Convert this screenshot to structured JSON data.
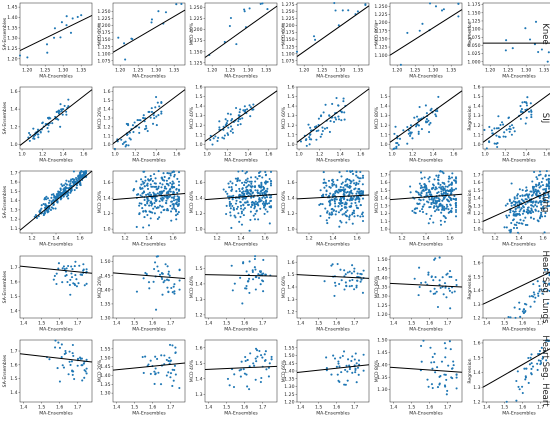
{
  "figure": {
    "rows": [
      {
        "label": "Knee"
      },
      {
        "label": "SIJ"
      },
      {
        "label": "Lung"
      },
      {
        "label": "Heart Seg. Lungs"
      },
      {
        "label": "Heart Seg. Heart"
      }
    ],
    "columns": [
      {
        "ylabel": "SA-Ensembles"
      },
      {
        "ylabel": "MCD 20%"
      },
      {
        "ylabel": "MCD 40%"
      },
      {
        "ylabel": "MCD 60%"
      },
      {
        "ylabel": "MCD 80%"
      },
      {
        "ylabel": "Regression"
      }
    ],
    "xlabel": "MA-Ensembles",
    "point_color": "#1f77b4",
    "line_color": "#000000"
  },
  "chart_data": {
    "type": "scatter",
    "note_fit": "each panel shows points with a black linear regression line",
    "rows": [
      {
        "name": "Knee",
        "xlim": [
          1.18,
          1.38
        ],
        "xticks": [
          "1.20",
          "1.25",
          "1.30",
          "1.35"
        ],
        "panels": [
          {
            "ylabel": "SA-Ensembles",
            "ylim": [
              1.17,
              1.47
            ],
            "yticks": [
              "1.20",
              "1.25",
              "1.30",
              "1.35",
              "1.40",
              "1.45"
            ],
            "n": 14,
            "xr": [
              1.2,
              1.35
            ],
            "slope": 1.05,
            "intercept": -0.01,
            "noise": 0.035,
            "seed": 11,
            "fit": [
              1.24,
              1.41
            ]
          },
          {
            "ylabel": "MCD 20%",
            "ylim": [
              1.06,
              1.28
            ],
            "yticks": [
              "1.075",
              "1.100",
              "1.125",
              "1.150",
              "1.175",
              "1.200",
              "1.225",
              "1.250"
            ],
            "n": 12,
            "xr": [
              1.2,
              1.37
            ],
            "slope": 1.0,
            "intercept": -0.08,
            "noise": 0.03,
            "seed": 12,
            "fit": [
              1.105,
              1.255
            ]
          },
          {
            "ylabel": "MCD 40%",
            "ylim": [
              1.12,
              1.26
            ],
            "yticks": [
              "1.125",
              "1.150",
              "1.175",
              "1.200",
              "1.225",
              "1.250"
            ],
            "n": 12,
            "xr": [
              1.2,
              1.36
            ],
            "slope": 0.75,
            "intercept": 0.24,
            "noise": 0.025,
            "seed": 13,
            "fit": [
              1.137,
              1.253
            ]
          },
          {
            "ylabel": "MCD 60%",
            "ylim": [
              1.06,
              1.28
            ],
            "yticks": [
              "1.075",
              "1.100",
              "1.125",
              "1.150",
              "1.175",
              "1.200",
              "1.225",
              "1.250",
              "1.275"
            ],
            "n": 12,
            "xr": [
              1.2,
              1.37
            ],
            "slope": 1.0,
            "intercept": -0.07,
            "noise": 0.03,
            "seed": 14,
            "fit": [
              1.09,
              1.27
            ]
          },
          {
            "ylabel": "MCD 80%",
            "ylim": [
              1.07,
              1.26
            ],
            "yticks": [
              "1.100",
              "1.125",
              "1.150",
              "1.175",
              "1.200",
              "1.225",
              "1.250"
            ],
            "n": 12,
            "xr": [
              1.2,
              1.37
            ],
            "slope": 0.95,
            "intercept": -0.03,
            "noise": 0.03,
            "seed": 15,
            "fit": [
              1.1,
              1.24
            ]
          },
          {
            "ylabel": "Regression",
            "ylim": [
              0.99,
              1.18
            ],
            "yticks": [
              "1.000",
              "1.025",
              "1.050",
              "1.075",
              "1.100",
              "1.125",
              "1.150",
              "1.175"
            ],
            "n": 12,
            "xr": [
              1.2,
              1.37
            ],
            "slope": 0.0,
            "intercept": 1.057,
            "noise": 0.035,
            "seed": 16,
            "fit": [
              1.057,
              1.057
            ]
          }
        ]
      },
      {
        "name": "SIJ",
        "xlim": [
          0.98,
          1.68
        ],
        "xticks": [
          "1.0",
          "1.2",
          "1.4",
          "1.6"
        ],
        "panels": [
          {
            "ylabel": "SA-Ensembles",
            "ylim": [
              0.95,
              1.65
            ],
            "yticks": [
              "1.0",
              "1.2",
              "1.4",
              "1.6"
            ],
            "n": 60,
            "xr": [
              1.0,
              1.45
            ],
            "slope": 1.0,
            "intercept": 0.0,
            "noise": 0.06,
            "seed": 21,
            "fit": [
              0.99,
              1.62
            ]
          },
          {
            "ylabel": "MCD 20%",
            "ylim": [
              0.95,
              1.65
            ],
            "yticks": [
              "1.0",
              "1.1",
              "1.2",
              "1.3",
              "1.4",
              "1.5",
              "1.6"
            ],
            "n": 60,
            "xr": [
              1.0,
              1.45
            ],
            "slope": 0.9,
            "intercept": 0.1,
            "noise": 0.07,
            "seed": 22,
            "fit": [
              1.01,
              1.62
            ]
          },
          {
            "ylabel": "MCD 40%",
            "ylim": [
              0.95,
              1.6
            ],
            "yticks": [
              "1.0",
              "1.1",
              "1.2",
              "1.3",
              "1.4",
              "1.5",
              "1.6"
            ],
            "n": 60,
            "xr": [
              1.0,
              1.45
            ],
            "slope": 0.85,
            "intercept": 0.16,
            "noise": 0.07,
            "seed": 23,
            "fit": [
              1.03,
              1.56
            ]
          },
          {
            "ylabel": "MCD 60%",
            "ylim": [
              0.95,
              1.6
            ],
            "yticks": [
              "1.0",
              "1.1",
              "1.2",
              "1.3",
              "1.4",
              "1.5",
              "1.6"
            ],
            "n": 60,
            "xr": [
              1.0,
              1.45
            ],
            "slope": 0.85,
            "intercept": 0.15,
            "noise": 0.07,
            "seed": 24,
            "fit": [
              1.02,
              1.58
            ]
          },
          {
            "ylabel": "MCD 80%",
            "ylim": [
              0.95,
              1.6
            ],
            "yticks": [
              "1.0",
              "1.1",
              "1.2",
              "1.3",
              "1.4",
              "1.5"
            ],
            "n": 60,
            "xr": [
              1.0,
              1.45
            ],
            "slope": 0.85,
            "intercept": 0.15,
            "noise": 0.07,
            "seed": 25,
            "fit": [
              1.02,
              1.56
            ]
          },
          {
            "ylabel": "Regression",
            "ylim": [
              0.95,
              1.6
            ],
            "yticks": [
              "1.0",
              "1.1",
              "1.2",
              "1.3",
              "1.4",
              "1.5",
              "1.6"
            ],
            "n": 60,
            "xr": [
              1.0,
              1.45
            ],
            "slope": 0.85,
            "intercept": 0.15,
            "noise": 0.08,
            "seed": 26,
            "fit": [
              1.02,
              1.57
            ]
          }
        ]
      },
      {
        "name": "Lung",
        "xlim": [
          1.1,
          1.7
        ],
        "xticks": [
          "1.2",
          "1.4",
          "1.6"
        ],
        "panels": [
          {
            "ylabel": "SA-Ensembles",
            "ylim": [
              1.05,
              1.72
            ],
            "yticks": [
              "1.1",
              "1.2",
              "1.3",
              "1.4",
              "1.5",
              "1.6",
              "1.7"
            ],
            "n": 260,
            "xr": [
              1.25,
              1.65
            ],
            "slope": 1.1,
            "intercept": -0.12,
            "noise": 0.04,
            "seed": 31,
            "fit": [
              1.08,
              1.72
            ]
          },
          {
            "ylabel": "MCD 20%",
            "ylim": [
              0.95,
              1.75
            ],
            "yticks": [
              "1.0",
              "1.2",
              "1.4",
              "1.6"
            ],
            "n": 260,
            "xr": [
              1.3,
              1.65
            ],
            "slope": 0.15,
            "intercept": 1.2,
            "noise": 0.15,
            "seed": 32,
            "fit": [
              1.38,
              1.46
            ]
          },
          {
            "ylabel": "MCD 40%",
            "ylim": [
              0.95,
              1.75
            ],
            "yticks": [
              "1.0",
              "1.2",
              "1.4",
              "1.6"
            ],
            "n": 260,
            "xr": [
              1.3,
              1.65
            ],
            "slope": 0.15,
            "intercept": 1.2,
            "noise": 0.15,
            "seed": 33,
            "fit": [
              1.38,
              1.45
            ]
          },
          {
            "ylabel": "MCD 60%",
            "ylim": [
              0.95,
              1.75
            ],
            "yticks": [
              "1.0",
              "1.2",
              "1.4",
              "1.6"
            ],
            "n": 260,
            "xr": [
              1.3,
              1.65
            ],
            "slope": 0.1,
            "intercept": 1.27,
            "noise": 0.15,
            "seed": 34,
            "fit": [
              1.39,
              1.44
            ]
          },
          {
            "ylabel": "MCD 80%",
            "ylim": [
              0.95,
              1.75
            ],
            "yticks": [
              "1.0",
              "1.1",
              "1.2",
              "1.3",
              "1.4",
              "1.5",
              "1.6",
              "1.7"
            ],
            "n": 260,
            "xr": [
              1.3,
              1.65
            ],
            "slope": 0.12,
            "intercept": 1.24,
            "noise": 0.15,
            "seed": 35,
            "fit": [
              1.38,
              1.45
            ]
          },
          {
            "ylabel": "Regression",
            "ylim": [
              0.95,
              1.75
            ],
            "yticks": [
              "1.0",
              "1.1",
              "1.2",
              "1.3",
              "1.4",
              "1.5",
              "1.6",
              "1.7"
            ],
            "n": 260,
            "xr": [
              1.3,
              1.65
            ],
            "slope": 0.9,
            "intercept": 0.0,
            "noise": 0.16,
            "seed": 36,
            "fit": [
              1.1,
              1.52
            ]
          }
        ]
      },
      {
        "name": "Heart Seg. Lungs",
        "xlim": [
          1.38,
          1.78
        ],
        "xticks": [
          "1.4",
          "1.5",
          "1.6",
          "1.7"
        ],
        "panels": [
          {
            "ylabel": "SA-Ensembles",
            "ylim": [
              1.35,
              1.78
            ],
            "yticks": [
              "1.4",
              "1.5",
              "1.6",
              "1.7"
            ],
            "n": 45,
            "xr": [
              1.55,
              1.75
            ],
            "slope": -0.2,
            "intercept": 1.99,
            "noise": 0.06,
            "seed": 41,
            "fit": [
              1.71,
              1.66
            ]
          },
          {
            "ylabel": "MCD 20%",
            "ylim": [
              1.3,
              1.52
            ],
            "yticks": [
              "1.30",
              "1.35",
              "1.40",
              "1.45",
              "1.50"
            ],
            "n": 45,
            "xr": [
              1.55,
              1.75
            ],
            "slope": -0.1,
            "intercept": 1.6,
            "noise": 0.04,
            "seed": 42,
            "fit": [
              1.46,
              1.44
            ]
          },
          {
            "ylabel": "MCD 40%",
            "ylim": [
              1.18,
              1.58
            ],
            "yticks": [
              "1.2",
              "1.3",
              "1.4",
              "1.5"
            ],
            "n": 45,
            "xr": [
              1.55,
              1.75
            ],
            "slope": -0.05,
            "intercept": 1.53,
            "noise": 0.06,
            "seed": 43,
            "fit": [
              1.46,
              1.45
            ]
          },
          {
            "ylabel": "MCD 60%",
            "ylim": [
              1.15,
              1.65
            ],
            "yticks": [
              "1.2",
              "1.3",
              "1.4",
              "1.5",
              "1.6"
            ],
            "n": 45,
            "xr": [
              1.55,
              1.75
            ],
            "slope": -0.1,
            "intercept": 1.64,
            "noise": 0.07,
            "seed": 44,
            "fit": [
              1.5,
              1.47
            ]
          },
          {
            "ylabel": "MCD 80%",
            "ylim": [
              1.18,
              1.52
            ],
            "yticks": [
              "1.20",
              "1.25",
              "1.30",
              "1.35",
              "1.40",
              "1.45",
              "1.50"
            ],
            "n": 45,
            "xr": [
              1.55,
              1.75
            ],
            "slope": -0.05,
            "intercept": 1.44,
            "noise": 0.06,
            "seed": 45,
            "fit": [
              1.37,
              1.35
            ]
          },
          {
            "ylabel": "Regression",
            "ylim": [
              1.2,
              1.65
            ],
            "yticks": [
              "1.2",
              "1.3",
              "1.4",
              "1.5",
              "1.6"
            ],
            "n": 45,
            "xr": [
              1.55,
              1.75
            ],
            "slope": 1.6,
            "intercept": -1.3,
            "noise": 0.06,
            "seed": 46,
            "fit": [
              1.3,
              1.55
            ]
          }
        ]
      },
      {
        "name": "Heart Seg. Heart",
        "xlim": [
          1.38,
          1.78
        ],
        "xticks": [
          "1.4",
          "1.5",
          "1.6",
          "1.7"
        ],
        "panels": [
          {
            "ylabel": "SA-Ensembles",
            "ylim": [
              1.33,
              1.78
            ],
            "yticks": [
              "1.4",
              "1.5",
              "1.6",
              "1.7"
            ],
            "n": 45,
            "xr": [
              1.55,
              1.75
            ],
            "slope": -0.2,
            "intercept": 1.96,
            "noise": 0.07,
            "seed": 51,
            "fit": [
              1.68,
              1.62
            ]
          },
          {
            "ylabel": "MCD 20%",
            "ylim": [
              1.25,
              1.6
            ],
            "yticks": [
              "1.30",
              "1.35",
              "1.40",
              "1.45",
              "1.50",
              "1.55"
            ],
            "n": 45,
            "xr": [
              1.55,
              1.75
            ],
            "slope": 0.1,
            "intercept": 1.29,
            "noise": 0.06,
            "seed": 52,
            "fit": [
              1.43,
              1.47
            ]
          },
          {
            "ylabel": "MCD 40%",
            "ylim": [
              1.25,
              1.65
            ],
            "yticks": [
              "1.3",
              "1.4",
              "1.5",
              "1.6"
            ],
            "n": 45,
            "xr": [
              1.55,
              1.75
            ],
            "slope": 0.05,
            "intercept": 1.39,
            "noise": 0.07,
            "seed": 53,
            "fit": [
              1.46,
              1.48
            ]
          },
          {
            "ylabel": "MCD 60%",
            "ylim": [
              1.2,
              1.6
            ],
            "yticks": [
              "1.20",
              "1.25",
              "1.30",
              "1.35",
              "1.40",
              "1.45",
              "1.50",
              "1.55"
            ],
            "n": 45,
            "xr": [
              1.55,
              1.75
            ],
            "slope": 0.15,
            "intercept": 1.18,
            "noise": 0.07,
            "seed": 54,
            "fit": [
              1.39,
              1.44
            ]
          },
          {
            "ylabel": "MCD 80%",
            "ylim": [
              1.25,
              1.5
            ],
            "yticks": [
              "1.30",
              "1.35",
              "1.40",
              "1.45",
              "1.50"
            ],
            "n": 45,
            "xr": [
              1.55,
              1.75
            ],
            "slope": -0.05,
            "intercept": 1.46,
            "noise": 0.05,
            "seed": 55,
            "fit": [
              1.39,
              1.37
            ]
          },
          {
            "ylabel": "Regression",
            "ylim": [
              1.2,
              1.62
            ],
            "yticks": [
              "1.2",
              "1.3",
              "1.4",
              "1.5",
              "1.6"
            ],
            "n": 45,
            "xr": [
              1.55,
              1.75
            ],
            "slope": 1.6,
            "intercept": -1.2,
            "noise": 0.06,
            "seed": 56,
            "fit": [
              1.3,
              1.58
            ]
          }
        ]
      }
    ]
  }
}
